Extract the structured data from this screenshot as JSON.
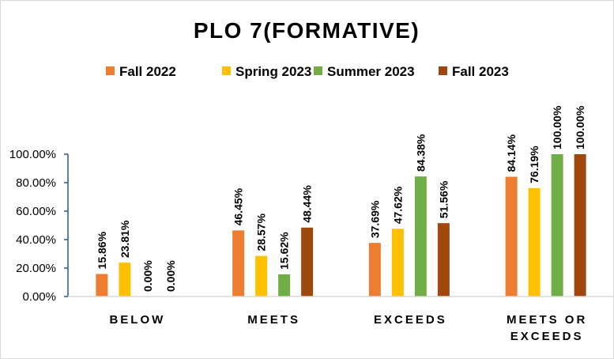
{
  "chart_data": {
    "type": "bar",
    "title": "PLO 7(FORMATIVE)",
    "categories": [
      [
        "BELOW"
      ],
      [
        "MEETS"
      ],
      [
        "EXCEEDS"
      ],
      [
        "MEETS OR",
        "EXCEEDS"
      ]
    ],
    "series": [
      {
        "name": "Fall 2022",
        "color": "#ED7D31",
        "values": [
          15.86,
          46.45,
          37.69,
          84.14
        ],
        "labels": [
          "15.86%",
          "46.45%",
          "37.69%",
          "84.14%"
        ]
      },
      {
        "name": "Spring 2023",
        "color": "#FFC000",
        "values": [
          23.81,
          28.57,
          47.62,
          76.19
        ],
        "labels": [
          "23.81%",
          "28.57%",
          "47.62%",
          "76.19%"
        ]
      },
      {
        "name": "Summer 2023",
        "color": "#70AD47",
        "values": [
          0,
          15.62,
          84.38,
          100
        ],
        "labels": [
          "0.00%",
          "15.62%",
          "84.38%",
          "100.00%"
        ]
      },
      {
        "name": "Fall 2023",
        "color": "#9E480E",
        "values": [
          0,
          48.44,
          51.56,
          100
        ],
        "labels": [
          "0.00%",
          "48.44%",
          "51.56%",
          "100.00%"
        ]
      }
    ],
    "y_ticks": [
      "0.00%",
      "20.00%",
      "40.00%",
      "60.00%",
      "80.00%",
      "100.00%"
    ],
    "ylim": [
      0,
      100
    ],
    "grid": false,
    "legend_position": "top"
  }
}
